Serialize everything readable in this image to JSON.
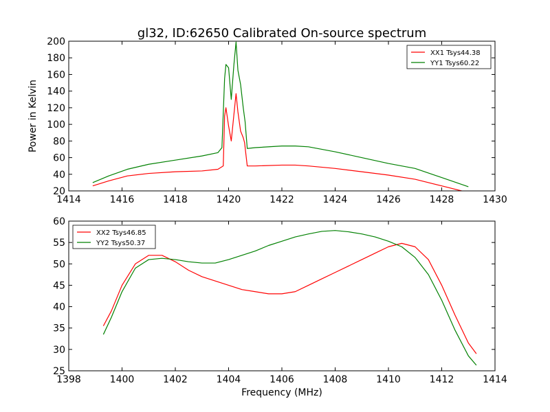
{
  "figure": {
    "title": "gl32, ID:62650 Calibrated On-source spectrum"
  },
  "chart_data": [
    {
      "type": "line",
      "title": "gl32, ID:62650 Calibrated On-source spectrum",
      "xlabel": "",
      "ylabel": "Power in Kelvin",
      "xlim": [
        1414,
        1430
      ],
      "ylim": [
        20,
        200
      ],
      "xticks": [
        "1414",
        "1416",
        "1418",
        "1420",
        "1422",
        "1424",
        "1426",
        "1428",
        "1430"
      ],
      "yticks": [
        "20",
        "40",
        "60",
        "80",
        "100",
        "120",
        "140",
        "160",
        "180",
        "200"
      ],
      "legend_position": "top-right",
      "grid": false,
      "series": [
        {
          "name": "XX1 Tsys44.38",
          "color": "#ff0000",
          "x": [
            1414.9,
            1415.5,
            1416.2,
            1417,
            1418,
            1419,
            1419.6,
            1419.8,
            1419.85,
            1419.9,
            1420,
            1420.1,
            1420.2,
            1420.28,
            1420.35,
            1420.45,
            1420.55,
            1420.6,
            1420.7,
            1421,
            1422,
            1422.5,
            1423,
            1424,
            1425,
            1426,
            1427,
            1428,
            1429
          ],
          "y": [
            26,
            32,
            38,
            41,
            43,
            44,
            46,
            50,
            110,
            120,
            98,
            80,
            112,
            137,
            115,
            92,
            84,
            78,
            50,
            50,
            51,
            51,
            50,
            47,
            43,
            39,
            34,
            26,
            18
          ]
        },
        {
          "name": "YY1 Tsys60.22",
          "color": "#008000",
          "x": [
            1414.9,
            1415.5,
            1416.2,
            1417,
            1418,
            1419,
            1419.6,
            1419.75,
            1419.85,
            1419.9,
            1420,
            1420.1,
            1420.2,
            1420.28,
            1420.35,
            1420.45,
            1420.55,
            1420.62,
            1420.7,
            1421,
            1422,
            1422.5,
            1423,
            1424,
            1425,
            1426,
            1427,
            1428,
            1429
          ],
          "y": [
            30,
            38,
            46,
            52,
            57,
            62,
            66,
            72,
            155,
            172,
            168,
            130,
            172,
            199,
            165,
            148,
            120,
            103,
            71,
            72,
            74,
            74,
            73,
            67,
            60,
            53,
            47,
            36,
            25
          ]
        }
      ]
    },
    {
      "type": "line",
      "title": "",
      "xlabel": "Frequency (MHz)",
      "ylabel": "",
      "xlim": [
        1398,
        1414
      ],
      "ylim": [
        25,
        60
      ],
      "xticks": [
        "1398",
        "1400",
        "1402",
        "1404",
        "1406",
        "1408",
        "1410",
        "1412",
        "1414"
      ],
      "yticks": [
        "25",
        "30",
        "35",
        "40",
        "45",
        "50",
        "55",
        "60"
      ],
      "legend_position": "top-left",
      "grid": false,
      "series": [
        {
          "name": "XX2 Tsys46.85",
          "color": "#ff0000",
          "x": [
            1399.3,
            1399.6,
            1400,
            1400.5,
            1401,
            1401.5,
            1402,
            1402.5,
            1403,
            1403.5,
            1404,
            1404.5,
            1405,
            1405.5,
            1406,
            1406.5,
            1407,
            1407.5,
            1408,
            1408.5,
            1409,
            1409.5,
            1410,
            1410.5,
            1411,
            1411.5,
            1412,
            1412.5,
            1413,
            1413.3
          ],
          "y": [
            35.5,
            39,
            45,
            50,
            52,
            52,
            50.5,
            48.5,
            47,
            46,
            45,
            44,
            43.5,
            43,
            43,
            43.5,
            45,
            46.5,
            48,
            49.5,
            51,
            52.5,
            54,
            54.8,
            54,
            51,
            45,
            38,
            31.5,
            29
          ]
        },
        {
          "name": "YY2 Tsys50.37",
          "color": "#008000",
          "x": [
            1399.3,
            1399.6,
            1400,
            1400.5,
            1401,
            1401.5,
            1402,
            1402.5,
            1403,
            1403.5,
            1404,
            1404.5,
            1405,
            1405.5,
            1406,
            1406.5,
            1407,
            1407.5,
            1408,
            1408.5,
            1409,
            1409.5,
            1410,
            1410.5,
            1411,
            1411.5,
            1412,
            1412.5,
            1413,
            1413.3
          ],
          "y": [
            33.5,
            37.5,
            43.5,
            49,
            51,
            51.3,
            51,
            50.5,
            50.2,
            50.2,
            51,
            52,
            53,
            54.3,
            55.3,
            56.3,
            57,
            57.6,
            57.8,
            57.5,
            57,
            56.3,
            55.3,
            54,
            51.5,
            47.5,
            41.5,
            34.5,
            28.5,
            26.3
          ]
        }
      ]
    }
  ]
}
